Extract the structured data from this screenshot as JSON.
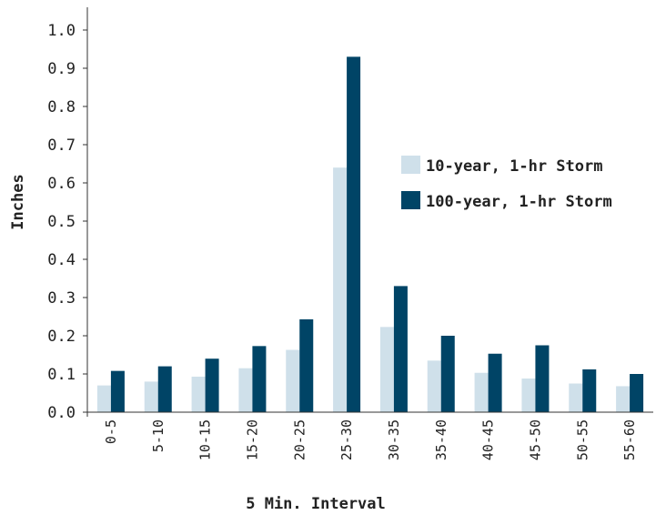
{
  "chart_data": {
    "type": "bar",
    "title": "",
    "xlabel": "5 Min. Interval",
    "ylabel": "Inches",
    "ylim": [
      0,
      1.0
    ],
    "yticks": [
      "0.0",
      "0.1",
      "0.2",
      "0.3",
      "0.4",
      "0.5",
      "0.6",
      "0.7",
      "0.8",
      "0.9",
      "1.0"
    ],
    "grid": false,
    "legend_position": "right",
    "categories": [
      "0-5",
      "5-10",
      "10-15",
      "15-20",
      "20-25",
      "25-30",
      "30-35",
      "35-40",
      "40-45",
      "45-50",
      "50-55",
      "55-60"
    ],
    "series": [
      {
        "name": "10-year, 1-hr Storm",
        "color": "#cfe0ea",
        "values": [
          0.07,
          0.08,
          0.093,
          0.115,
          0.163,
          0.64,
          0.223,
          0.135,
          0.103,
          0.088,
          0.075,
          0.068
        ]
      },
      {
        "name": "100-year, 1-hr Storm",
        "color": "#004466",
        "values": [
          0.108,
          0.12,
          0.14,
          0.173,
          0.243,
          0.93,
          0.33,
          0.2,
          0.153,
          0.175,
          0.112,
          0.1
        ]
      }
    ]
  }
}
